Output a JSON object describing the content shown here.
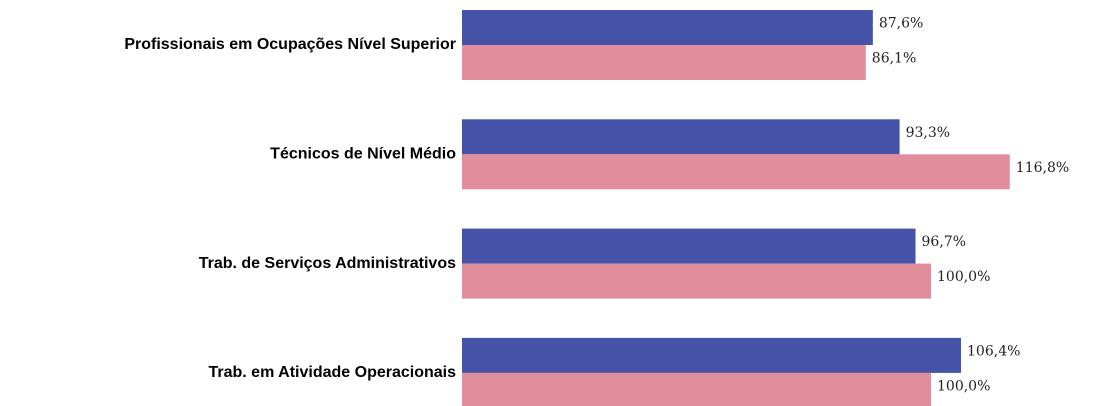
{
  "chart_data": {
    "type": "bar",
    "orientation": "horizontal",
    "categories": [
      "Profissionais em Ocupações Nível Superior",
      "Técnicos de Nível Médio",
      "Trab. de Serviços Administrativos",
      "Trab. em Atividade Operacionais"
    ],
    "series": [
      {
        "color": "#4452a8",
        "values": [
          87.6,
          93.3,
          96.7,
          106.4
        ],
        "value_labels": [
          "87,6%",
          "93,3%",
          "96,7%",
          "106,4%"
        ]
      },
      {
        "color": "#e08e9b",
        "values": [
          86.1,
          116.8,
          100.0,
          100.0
        ],
        "value_labels": [
          "86,1%",
          "116,8%",
          "100,0%",
          "100,0%"
        ]
      }
    ]
  }
}
